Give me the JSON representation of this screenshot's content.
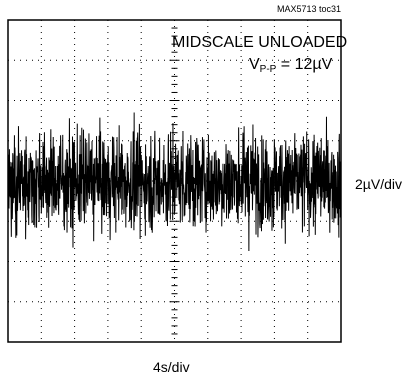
{
  "figure_id": "MAX5713 toc31",
  "chart_data": {
    "type": "line",
    "title": "",
    "annotation_line1": "MIDSCALE UNLOADED",
    "annotation_line2": "V",
    "annotation_sub": "P-P",
    "annotation_value": " = 12µV",
    "ylabel": "2µV/div",
    "xlabel": "4s/div",
    "x_divisions": 10,
    "y_divisions": 8,
    "time_per_div_s": 4,
    "volts_per_div_uV": 2,
    "peak_to_peak_uV": 12,
    "grid": "dotted",
    "series": [
      {
        "values": [],
        "color": "#000000"
      }
    ]
  }
}
